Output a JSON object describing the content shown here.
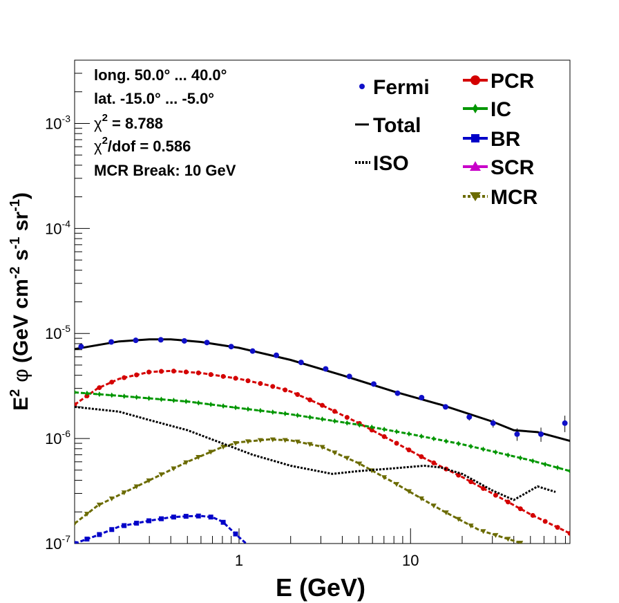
{
  "chart_data": {
    "type": "line",
    "xlabel": "E (GeV)",
    "ylabel": {
      "pre": "E",
      "pre_sup": "2",
      "phi": "φ",
      "body": " (GeV cm",
      "s1": "-2",
      "mid": " s",
      "s2": "-1",
      "mid2": " sr",
      "s3": "-1",
      "post": ")"
    },
    "x_scale": "log",
    "y_scale": "log",
    "xlim": [
      0.11,
      85
    ],
    "ylim": [
      1e-07,
      0.004
    ],
    "x_ticks": [
      {
        "value": 1,
        "label": "1"
      },
      {
        "value": 10,
        "label": "10"
      }
    ],
    "y_ticks": [
      {
        "value": 1e-07,
        "base": "10",
        "exp": "-7"
      },
      {
        "value": 1e-06,
        "base": "10",
        "exp": "-6"
      },
      {
        "value": 1e-05,
        "base": "10",
        "exp": "-5"
      },
      {
        "value": 0.0001,
        "base": "10",
        "exp": "-4"
      },
      {
        "value": 0.001,
        "base": "10",
        "exp": "-3"
      }
    ],
    "info_lines": [
      {
        "text": "long. 50.0° ... 40.0°"
      },
      {
        "text": "lat. -15.0° ... -5.0°"
      },
      {
        "pre": "χ",
        "sup": "2",
        "post": " = 8.788"
      },
      {
        "pre": "χ",
        "sup": "2",
        "post": "/dof = 0.586"
      },
      {
        "text": "MCR Break: 10 GeV"
      }
    ],
    "legend_left": [
      {
        "label": "Fermi",
        "symbol": "dot",
        "color": "#1010c8"
      },
      {
        "label": "Total",
        "symbol": "line",
        "color": "#000000"
      },
      {
        "label": "ISO",
        "symbol": "dotted",
        "color": "#000000"
      }
    ],
    "legend_right": [
      {
        "label": "PCR",
        "symbol": "circle",
        "color": "#d40000"
      },
      {
        "label": "IC",
        "symbol": "star",
        "color": "#009600"
      },
      {
        "label": "BR",
        "symbol": "square",
        "color": "#0000c8"
      },
      {
        "label": "SCR",
        "symbol": "triangle-up",
        "color": "#c800c8"
      },
      {
        "label": "MCR",
        "symbol": "triangle-down",
        "color": "#6b6b00"
      }
    ],
    "series": [
      {
        "name": "Total",
        "color": "#000000",
        "style": "solid",
        "x": [
          0.11,
          0.2,
          0.3,
          0.4,
          0.6,
          1.0,
          2.0,
          4.0,
          8.0,
          15.0,
          30.0,
          40.0,
          55.0,
          85.0
        ],
        "y": [
          7.1e-06,
          8.4e-06,
          8.8e-06,
          8.8e-06,
          8.3e-06,
          7.3e-06,
          5.6e-06,
          4e-06,
          2.8e-06,
          2.1e-06,
          1.45e-06,
          1.2e-06,
          1.15e-06,
          9.5e-07
        ]
      },
      {
        "name": "PCR",
        "color": "#d40000",
        "style": "dashed",
        "marker": "circle",
        "x": [
          0.11,
          0.15,
          0.2,
          0.3,
          0.4,
          0.6,
          1.0,
          1.5,
          2.0,
          3.0,
          5.0,
          8.0,
          12.0,
          20.0,
          30.0,
          50.0,
          85.0
        ],
        "y": [
          2.1e-06,
          3e-06,
          3.7e-06,
          4.3e-06,
          4.4e-06,
          4.2e-06,
          3.7e-06,
          3.2e-06,
          2.8e-06,
          2.1e-06,
          1.4e-06,
          9.3e-07,
          6.5e-07,
          4.3e-07,
          3e-07,
          1.9e-07,
          1.25e-07
        ]
      },
      {
        "name": "IC",
        "color": "#009600",
        "style": "dashed",
        "marker": "star",
        "x": [
          0.11,
          0.2,
          0.5,
          1.0,
          2.0,
          5.0,
          10.0,
          20.0,
          50.0,
          85.0
        ],
        "y": [
          2.75e-06,
          2.55e-06,
          2.25e-06,
          1.95e-06,
          1.7e-06,
          1.35e-06,
          1.1e-06,
          8.8e-07,
          6.2e-07,
          4.9e-07
        ]
      },
      {
        "name": "BR",
        "color": "#0000c8",
        "style": "dashed",
        "marker": "square",
        "x": [
          0.11,
          0.15,
          0.2,
          0.3,
          0.4,
          0.5,
          0.6,
          0.7,
          0.8,
          0.9,
          1.0,
          1.1
        ],
        "y": [
          1e-07,
          1.2e-07,
          1.45e-07,
          1.65e-07,
          1.78e-07,
          1.82e-07,
          1.83e-07,
          1.78e-07,
          1.62e-07,
          1.35e-07,
          1.15e-07,
          1e-07
        ]
      },
      {
        "name": "MCR",
        "color": "#6b6b00",
        "style": "dashed",
        "marker": "triangle-down",
        "x": [
          0.11,
          0.15,
          0.2,
          0.3,
          0.5,
          0.8,
          1.0,
          1.5,
          2.0,
          3.0,
          5.0,
          8.0,
          15.0,
          25.0,
          45.0
        ],
        "y": [
          1.55e-07,
          2.3e-07,
          2.9e-07,
          4e-07,
          6e-07,
          8.3e-07,
          9.2e-07,
          9.8e-07,
          9.6e-07,
          8.4e-07,
          5.8e-07,
          3.8e-07,
          2.1e-07,
          1.35e-07,
          1e-07
        ]
      },
      {
        "name": "ISO",
        "color": "#000000",
        "style": "dotted",
        "x": [
          0.11,
          0.2,
          0.3,
          0.5,
          0.8,
          1.2,
          2.0,
          3.5,
          5.0,
          8.0,
          12.0,
          15.0,
          20.0,
          30.0,
          40.0,
          45.0,
          55.0,
          70.0
        ],
        "y": [
          2e-06,
          1.8e-06,
          1.5e-06,
          1.2e-06,
          9e-07,
          7e-07,
          5.5e-07,
          4.6e-07,
          4.9e-07,
          5.2e-07,
          5.5e-07,
          5.3e-07,
          4.6e-07,
          3.2e-07,
          2.6e-07,
          2.9e-07,
          3.5e-07,
          3.1e-07
        ]
      },
      {
        "name": "Fermi",
        "color": "#1010c8",
        "style": "points",
        "x": [
          0.12,
          0.18,
          0.25,
          0.35,
          0.48,
          0.65,
          0.9,
          1.2,
          1.65,
          2.3,
          3.2,
          4.4,
          6.1,
          8.4,
          11.6,
          16.0,
          22.0,
          30.3,
          41.8,
          57.6,
          79.4
        ],
        "y": [
          7.5e-06,
          8.3e-06,
          8.6e-06,
          8.7e-06,
          8.5e-06,
          8.2e-06,
          7.5e-06,
          6.8e-06,
          6.2e-06,
          5.3e-06,
          4.6e-06,
          3.9e-06,
          3.3e-06,
          2.7e-06,
          2.45e-06,
          2e-06,
          1.6e-06,
          1.4e-06,
          1.1e-06,
          1.1e-06,
          1.4e-06
        ],
        "yerr": [
          2e-07,
          2e-07,
          2e-07,
          2e-07,
          2e-07,
          2e-07,
          2e-07,
          1.8e-07,
          1.6e-07,
          1.4e-07,
          1.2e-07,
          1e-07,
          9e-08,
          8e-08,
          8e-08,
          1e-07,
          1.2e-07,
          1.3e-07,
          1.5e-07,
          1.7e-07,
          2.5e-07
        ]
      }
    ]
  }
}
